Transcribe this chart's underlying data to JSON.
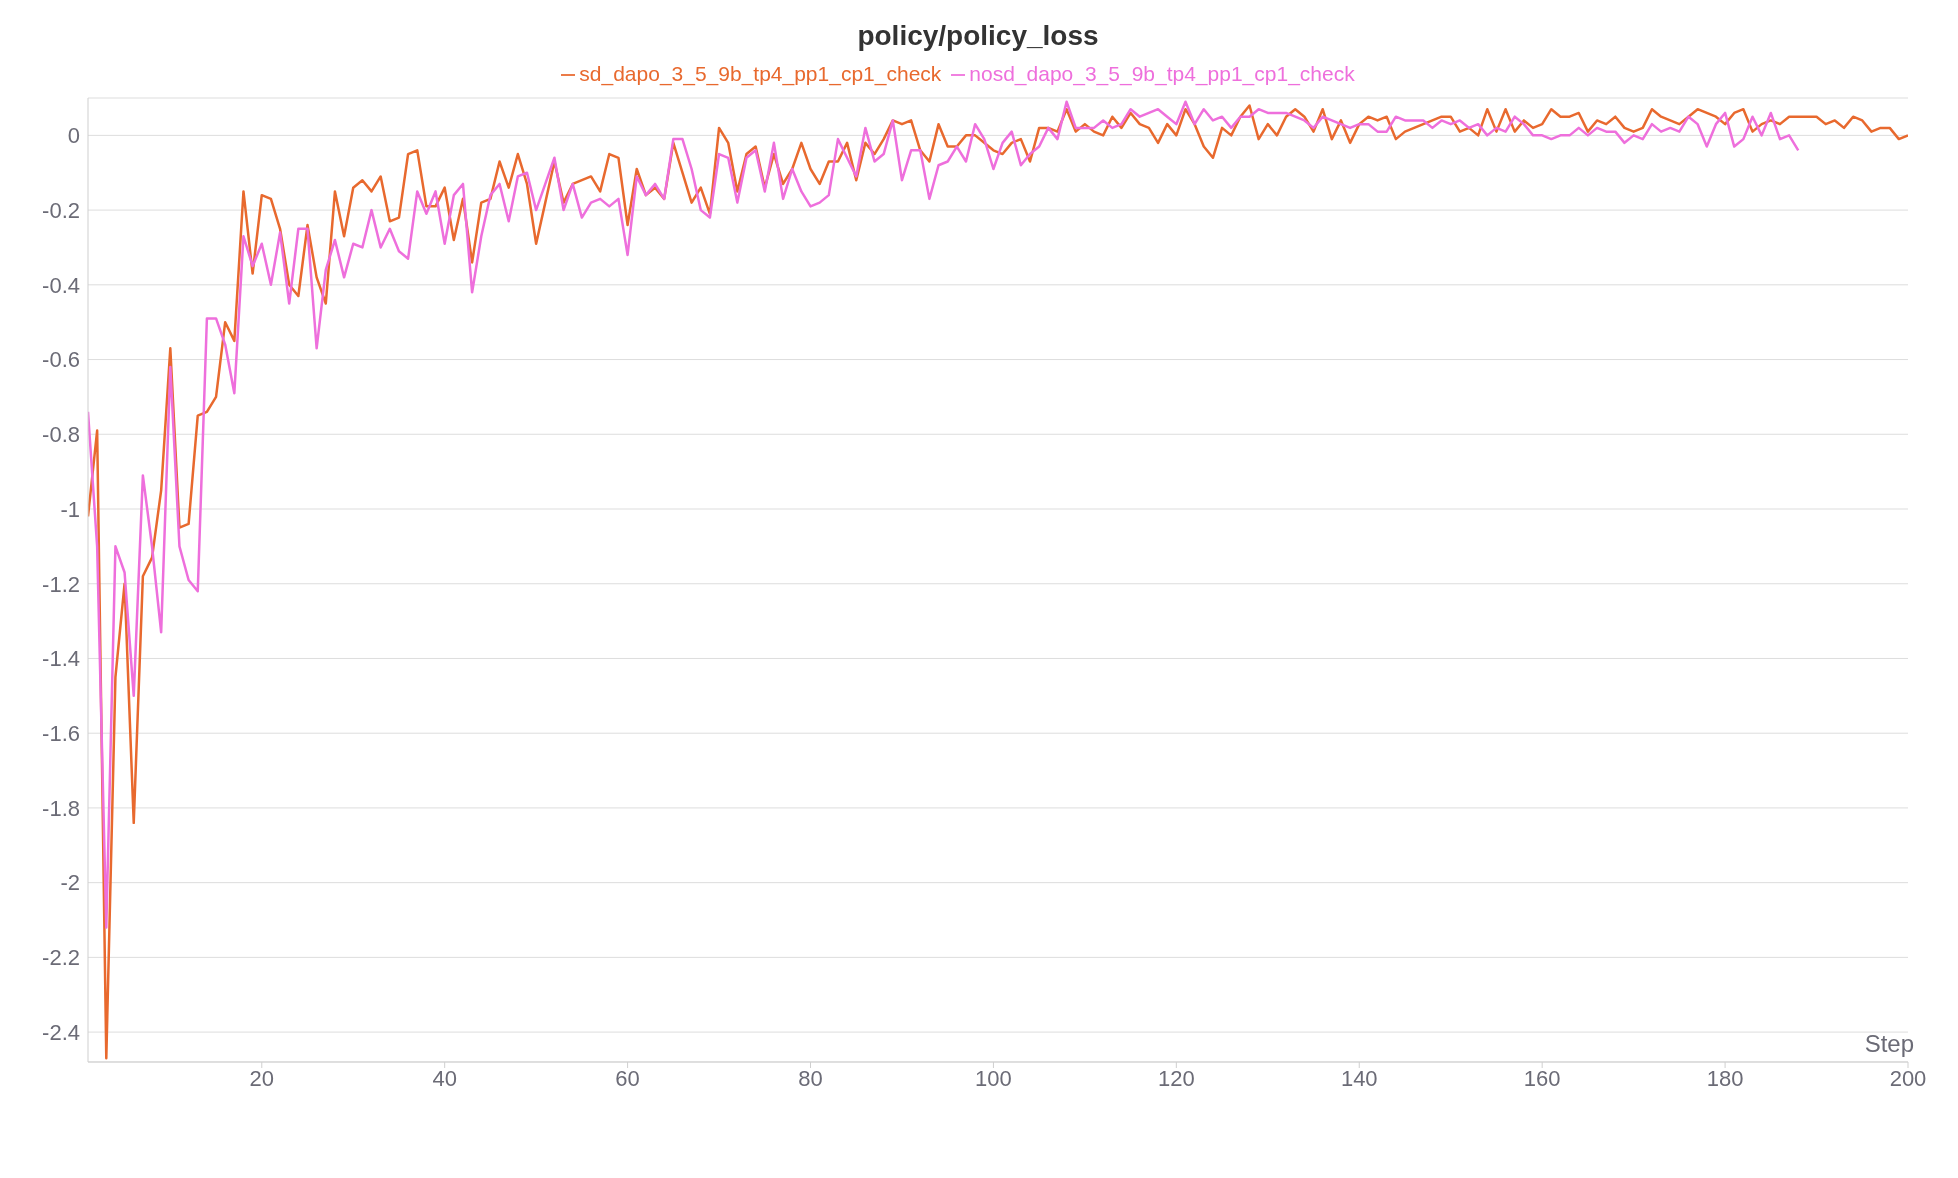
{
  "chart_data": {
    "type": "line",
    "title": "policy/policy_loss",
    "xlabel": "Step",
    "legend": "top",
    "grid": "y",
    "marker": "none",
    "line_style": "solid",
    "xlim": [
      1,
      200
    ],
    "xticks": [
      20,
      40,
      60,
      80,
      100,
      120,
      140,
      160,
      180,
      200
    ],
    "ylim": [
      -2.48,
      0.1
    ],
    "yticks": [
      0,
      -0.2,
      -0.4,
      -0.6,
      -0.8,
      -1,
      -1.2,
      -1.4,
      -1.6,
      -1.8,
      -2,
      -2.2,
      -2.4
    ],
    "x": [
      1,
      2,
      3,
      4,
      5,
      6,
      7,
      8,
      9,
      10,
      11,
      12,
      13,
      14,
      15,
      16,
      17,
      18,
      19,
      20,
      21,
      22,
      23,
      24,
      25,
      26,
      27,
      28,
      29,
      30,
      31,
      32,
      33,
      34,
      35,
      36,
      37,
      38,
      39,
      40,
      41,
      42,
      43,
      44,
      45,
      46,
      47,
      48,
      49,
      50,
      51,
      52,
      53,
      54,
      55,
      56,
      57,
      58,
      59,
      60,
      61,
      62,
      63,
      64,
      65,
      66,
      67,
      68,
      69,
      70,
      71,
      72,
      73,
      74,
      75,
      76,
      77,
      78,
      79,
      80,
      81,
      82,
      83,
      84,
      85,
      86,
      87,
      88,
      89,
      90,
      91,
      92,
      93,
      94,
      95,
      96,
      97,
      98,
      99,
      100,
      101,
      102,
      103,
      104,
      105,
      106,
      107,
      108,
      109,
      110,
      111,
      112,
      113,
      114,
      115,
      116,
      117,
      118,
      119,
      120,
      121,
      122,
      123,
      124,
      125,
      126,
      127,
      128,
      129,
      130,
      131,
      132,
      133,
      134,
      135,
      136,
      137,
      138,
      139,
      140,
      141,
      142,
      143,
      144,
      145,
      146,
      147,
      148,
      149,
      150,
      151,
      152,
      153,
      154,
      155,
      156,
      157,
      158,
      159,
      160,
      161,
      162,
      163,
      164,
      165,
      166,
      167,
      168,
      169,
      170,
      171,
      172,
      173,
      174,
      175,
      176,
      177,
      178,
      179,
      180,
      181,
      182,
      183,
      184,
      185,
      186,
      187,
      188,
      189,
      190,
      191,
      192,
      193,
      194,
      195,
      196,
      197,
      198,
      199,
      200
    ],
    "series": [
      {
        "name": "sd_dapo_3_5_9b_tp4_pp1_cp1_check",
        "color": "#e8692e",
        "values": [
          -1.02,
          -0.79,
          -2.47,
          -1.45,
          -1.2,
          -1.84,
          -1.18,
          -1.13,
          -0.95,
          -0.57,
          -1.05,
          -1.04,
          -0.75,
          -0.74,
          -0.7,
          -0.5,
          -0.55,
          -0.15,
          -0.37,
          -0.16,
          -0.17,
          -0.25,
          -0.4,
          -0.43,
          -0.24,
          -0.38,
          -0.45,
          -0.15,
          -0.27,
          -0.14,
          -0.12,
          -0.15,
          -0.11,
          -0.23,
          -0.22,
          -0.05,
          -0.04,
          -0.19,
          -0.19,
          -0.14,
          -0.28,
          -0.17,
          -0.34,
          -0.18,
          -0.17,
          -0.07,
          -0.14,
          -0.05,
          -0.13,
          -0.29,
          -0.18,
          -0.07,
          -0.18,
          -0.13,
          -0.12,
          -0.11,
          -0.15,
          -0.05,
          -0.06,
          -0.24,
          -0.09,
          -0.16,
          -0.14,
          -0.17,
          -0.02,
          -0.1,
          -0.18,
          -0.14,
          -0.21,
          0.02,
          -0.02,
          -0.15,
          -0.05,
          -0.03,
          -0.14,
          -0.05,
          -0.13,
          -0.09,
          -0.02,
          -0.09,
          -0.13,
          -0.07,
          -0.07,
          -0.02,
          -0.12,
          -0.02,
          -0.05,
          -0.01,
          0.04,
          0.03,
          0.04,
          -0.04,
          -0.07,
          0.03,
          -0.03,
          -0.03,
          0,
          0,
          -0.02,
          -0.04,
          -0.05,
          -0.02,
          -0.01,
          -0.07,
          0.02,
          0.02,
          0.01,
          0.07,
          0.01,
          0.03,
          0.01,
          0,
          0.05,
          0.02,
          0.06,
          0.03,
          0.02,
          -0.02,
          0.03,
          0,
          0.07,
          0.03,
          -0.03,
          -0.06,
          0.02,
          0,
          0.05,
          0.08,
          -0.01,
          0.03,
          0,
          0.05,
          0.07,
          0.05,
          0.01,
          0.07,
          -0.01,
          0.04,
          -0.02,
          0.03,
          0.05,
          0.04,
          0.05,
          -0.01,
          0.01,
          0.02,
          0.03,
          0.04,
          0.05,
          0.05,
          0.01,
          0.02,
          0,
          0.07,
          0.01,
          0.07,
          0.01,
          0.04,
          0.02,
          0.03,
          0.07,
          0.05,
          0.05,
          0.06,
          0.01,
          0.04,
          0.03,
          0.05,
          0.02,
          0.01,
          0.02,
          0.07,
          0.05,
          0.04,
          0.03,
          0.05,
          0.07,
          0.06,
          0.05,
          0.03,
          0.06,
          0.07,
          0.01,
          0.03,
          0.04,
          0.03,
          0.05,
          0.05,
          0.05,
          0.05,
          0.03,
          0.04,
          0.02,
          0.05,
          0.04,
          0.01,
          0.02,
          0.02,
          -0.01,
          0
        ]
      },
      {
        "name": "nosd_dapo_3_5_9b_tp4_pp1_cp1_check",
        "color": "#ee6fdc",
        "values": [
          -0.74,
          -1.1,
          -2.12,
          -1.1,
          -1.17,
          -1.5,
          -0.91,
          -1.1,
          -1.33,
          -0.62,
          -1.1,
          -1.19,
          -1.22,
          -0.49,
          -0.49,
          -0.56,
          -0.69,
          -0.27,
          -0.35,
          -0.29,
          -0.4,
          -0.26,
          -0.45,
          -0.25,
          -0.25,
          -0.57,
          -0.36,
          -0.28,
          -0.38,
          -0.29,
          -0.3,
          -0.2,
          -0.3,
          -0.25,
          -0.31,
          -0.33,
          -0.15,
          -0.21,
          -0.15,
          -0.29,
          -0.16,
          -0.13,
          -0.42,
          -0.27,
          -0.16,
          -0.13,
          -0.23,
          -0.11,
          -0.1,
          -0.2,
          -0.13,
          -0.06,
          -0.2,
          -0.13,
          -0.22,
          -0.18,
          -0.17,
          -0.19,
          -0.17,
          -0.32,
          -0.11,
          -0.16,
          -0.13,
          -0.17,
          -0.01,
          -0.01,
          -0.09,
          -0.2,
          -0.22,
          -0.05,
          -0.06,
          -0.18,
          -0.06,
          -0.04,
          -0.15,
          -0.02,
          -0.17,
          -0.09,
          -0.15,
          -0.19,
          -0.18,
          -0.16,
          -0.01,
          -0.06,
          -0.11,
          0.02,
          -0.07,
          -0.05,
          0.04,
          -0.12,
          -0.04,
          -0.04,
          -0.17,
          -0.08,
          -0.07,
          -0.03,
          -0.07,
          0.03,
          -0.01,
          -0.09,
          -0.02,
          0.01,
          -0.08,
          -0.05,
          -0.03,
          0.02,
          -0.01,
          0.09,
          0.02,
          0.02,
          0.02,
          0.04,
          0.02,
          0.03,
          0.07,
          0.05,
          0.06,
          0.07,
          0.05,
          0.03,
          0.09,
          0.03,
          0.07,
          0.04,
          0.05,
          0.02,
          0.05,
          0.05,
          0.07,
          0.06,
          0.06,
          0.06,
          0.05,
          0.04,
          0.02,
          0.05,
          0.04,
          0.03,
          0.02,
          0.03,
          0.03,
          0.01,
          0.01,
          0.05,
          0.04,
          0.04,
          0.04,
          0.02,
          0.04,
          0.03,
          0.04,
          0.02,
          0.03,
          0,
          0.02,
          0.01,
          0.05,
          0.03,
          0,
          0,
          -0.01,
          0,
          0,
          0.02,
          0,
          0.02,
          0.01,
          0.01,
          -0.02,
          0,
          -0.01,
          0.03,
          0.01,
          0.02,
          0.01,
          0.05,
          0.03,
          -0.03,
          0.03,
          0.06,
          -0.03,
          -0.01,
          0.05,
          0,
          0.06,
          -0.01,
          0,
          -0.04,
          null,
          null,
          null,
          null,
          null,
          null,
          null,
          null,
          null,
          null,
          null,
          null
        ]
      }
    ]
  }
}
